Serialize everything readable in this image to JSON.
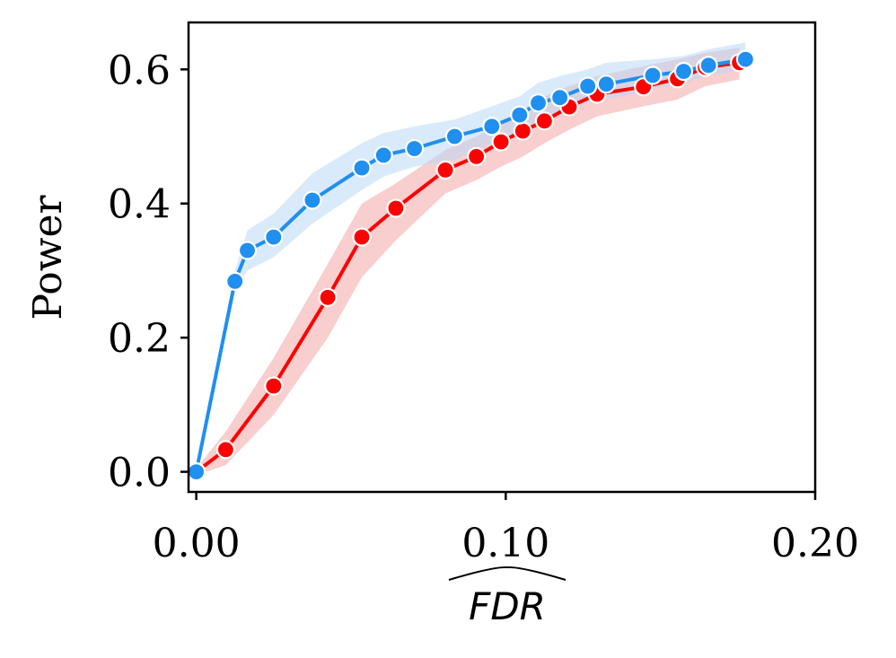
{
  "chart_data": {
    "type": "line",
    "title": "",
    "xlabel": "FDR",
    "xlabel_decoration": "hat",
    "ylabel": "Power",
    "xlim": [
      -0.0025,
      0.2
    ],
    "ylim": [
      -0.03,
      0.67
    ],
    "xticks": [
      0.0,
      0.1,
      0.2
    ],
    "xtick_labels": [
      "0.00",
      "0.10",
      "0.20"
    ],
    "yticks": [
      0.0,
      0.2,
      0.4,
      0.6
    ],
    "ytick_labels": [
      "0.0",
      "0.2",
      "0.4",
      "0.6"
    ],
    "grid": false,
    "legend": null,
    "series": [
      {
        "name": "red",
        "color": "#ff0000",
        "band_color": "#f4a6a6",
        "x": [
          0.0,
          0.0095,
          0.025,
          0.0425,
          0.0535,
          0.0645,
          0.0805,
          0.0905,
          0.0985,
          0.1055,
          0.1125,
          0.1205,
          0.1295,
          0.1445,
          0.1555,
          0.1645,
          0.1755
        ],
        "y": [
          0.0,
          0.033,
          0.128,
          0.26,
          0.35,
          0.393,
          0.45,
          0.47,
          0.492,
          0.508,
          0.523,
          0.544,
          0.563,
          0.574,
          0.586,
          0.603,
          0.61
        ],
        "band_upper": [
          0.005,
          0.06,
          0.17,
          0.31,
          0.4,
          0.43,
          0.48,
          0.5,
          0.52,
          0.54,
          0.56,
          0.575,
          0.59,
          0.605,
          0.615,
          0.625,
          0.632
        ],
        "band_lower": [
          -0.005,
          0.01,
          0.085,
          0.2,
          0.29,
          0.345,
          0.415,
          0.435,
          0.455,
          0.47,
          0.49,
          0.51,
          0.53,
          0.545,
          0.555,
          0.575,
          0.585
        ]
      },
      {
        "name": "blue",
        "color": "#1f8ff0",
        "band_color": "#b9d8f5",
        "x": [
          0.0,
          0.0125,
          0.0165,
          0.025,
          0.0375,
          0.0535,
          0.0605,
          0.0705,
          0.0835,
          0.0955,
          0.1045,
          0.1105,
          0.1175,
          0.1265,
          0.1325,
          0.1475,
          0.1575,
          0.1655,
          0.1775
        ],
        "y": [
          0.0,
          0.284,
          0.33,
          0.35,
          0.405,
          0.453,
          0.472,
          0.482,
          0.5,
          0.515,
          0.532,
          0.55,
          0.558,
          0.575,
          0.578,
          0.591,
          0.597,
          0.606,
          0.615
        ],
        "band_upper": [
          0.005,
          0.3,
          0.36,
          0.385,
          0.445,
          0.49,
          0.505,
          0.515,
          0.525,
          0.545,
          0.56,
          0.58,
          0.59,
          0.6,
          0.61,
          0.615,
          0.62,
          0.63,
          0.64
        ],
        "band_lower": [
          -0.005,
          0.27,
          0.3,
          0.32,
          0.37,
          0.42,
          0.44,
          0.455,
          0.465,
          0.49,
          0.505,
          0.525,
          0.53,
          0.55,
          0.555,
          0.57,
          0.58,
          0.59,
          0.6
        ]
      }
    ]
  }
}
